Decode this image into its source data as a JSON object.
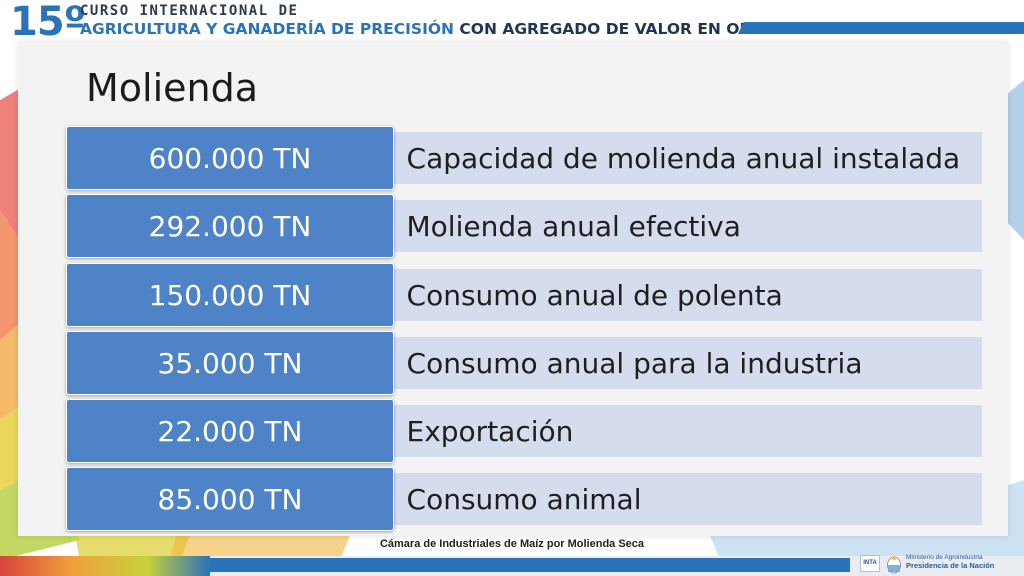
{
  "header": {
    "number": "15º",
    "line1": "CURSO INTERNACIONAL DE",
    "line2_blue": "AGRICULTURA Y GANADERÍA DE PRECISIÓN",
    "line2_dark": "CON AGREGADO DE VALOR EN ORIGEN"
  },
  "title": "Molienda",
  "rows": [
    {
      "value": "600.000 TN",
      "label": "Capacidad de molienda anual instalada"
    },
    {
      "value": "292.000 TN",
      "label": "Molienda anual efectiva"
    },
    {
      "value": "150.000 TN",
      "label": "Consumo anual de polenta"
    },
    {
      "value": "35.000 TN",
      "label": "Consumo anual para la industria"
    },
    {
      "value": "22.000 TN",
      "label": "Exportación"
    },
    {
      "value": "85.000 TN",
      "label": "Consumo animal"
    }
  ],
  "bullet": "•",
  "source": "Cámara de Industriales de Maíz por Molienda Seca",
  "footer": {
    "inta_logo": "INTA",
    "ministry_line1": "Ministerio de Agroindustria",
    "ministry_line2": "Presidencia de la Nación"
  },
  "colors": {
    "accent_blue": "#2a73b8",
    "value_box": "#4f83c8",
    "label_box": "#d5dcee"
  }
}
